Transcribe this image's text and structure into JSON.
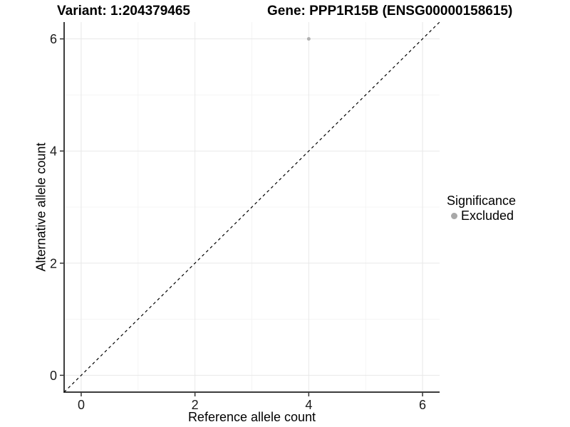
{
  "header": {
    "variant_title": "Variant: 1:204379465",
    "gene_title": "Gene: PPP1R15B (ENSG00000158615)"
  },
  "chart_data": {
    "type": "scatter",
    "xlabel": "Reference allele count",
    "ylabel": "Alternative allele count",
    "xlim": [
      -0.3,
      6.3
    ],
    "ylim": [
      -0.3,
      6.3
    ],
    "x_ticks": [
      0,
      2,
      4,
      6
    ],
    "y_ticks": [
      0,
      2,
      4,
      6
    ],
    "x_minor_ticks": [
      1,
      3,
      5
    ],
    "y_minor_ticks": [
      1,
      3,
      5
    ],
    "grid": "on",
    "points": [
      {
        "x": 4,
        "y": 6,
        "series": "Excluded"
      }
    ],
    "identity_line": {
      "style": "dashed",
      "from": [
        -0.3,
        -0.3
      ],
      "to": [
        6.3,
        6.3
      ]
    },
    "legend": {
      "title": "Significance",
      "position": "right",
      "entries": [
        {
          "label": "Excluded",
          "color": "#b0b0b0"
        }
      ]
    }
  },
  "colors": {
    "background": "#ffffff",
    "grid_major": "#e8e8e8",
    "grid_minor": "#f4f4f4",
    "axis_line": "#3c3c3c",
    "tick_mark": "#333333",
    "tick_label": "#1a1a1a",
    "identity_line": "#000000",
    "point": "#b0b0b0",
    "legend_key": "#a8a8a8"
  }
}
